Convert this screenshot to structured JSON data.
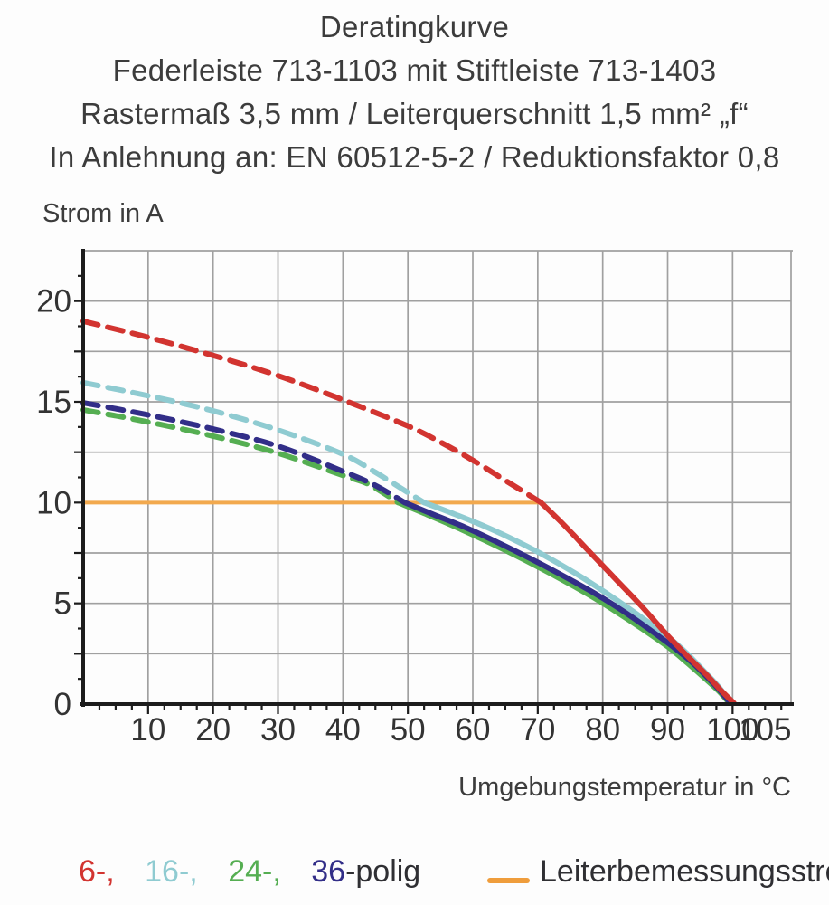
{
  "title": {
    "line1": "Deratingkurve",
    "line2": "Federleiste 713-1103 mit Stiftleiste 713-1403",
    "line3": "Rastermaß 3,5 mm / Leiterquerschnitt 1,5 mm² „f“",
    "line4": "In Anlehnung an: EN 60512-5-2 / Reduktionsfaktor 0,8"
  },
  "chart_data": {
    "type": "line",
    "title": "Deratingkurve",
    "xlabel": "Umgebungstemperatur in °C",
    "ylabel": "Strom in A",
    "xlim": [
      0,
      109
    ],
    "ylim": [
      0,
      22.5
    ],
    "x_ticks": [
      10,
      20,
      30,
      40,
      50,
      60,
      70,
      80,
      90,
      100,
      105
    ],
    "x_grid_step": 10,
    "x_minor_tick_step": 2.5,
    "y_ticks": [
      0,
      5,
      10,
      15,
      20
    ],
    "y_grid_step": 2.5,
    "y_minor_tick_step": 1.25,
    "grid": true,
    "grid_color": "#a0a0a0",
    "axis_color": "#1c1c1c",
    "legend_position": "bottom",
    "rated_line": {
      "label": "Leiterbemessungsstrom",
      "color": "#f2a94e",
      "current_a": 10,
      "x_start": 0,
      "x_end": 70.5
    },
    "series": [
      {
        "name": "24-polig",
        "color": "#55ae52",
        "dashed_above_rated_current": true,
        "points_dashed": [
          [
            0,
            14.6
          ],
          [
            10,
            14.0
          ],
          [
            20,
            13.3
          ],
          [
            30,
            12.45
          ],
          [
            40,
            11.35
          ],
          [
            44,
            10.9
          ],
          [
            48.5,
            10.0
          ]
        ],
        "points_solid": [
          [
            48.5,
            10.0
          ],
          [
            53,
            9.4
          ],
          [
            58,
            8.7
          ],
          [
            63,
            7.95
          ],
          [
            68,
            7.15
          ],
          [
            73,
            6.3
          ],
          [
            78,
            5.4
          ],
          [
            82,
            4.6
          ],
          [
            86,
            3.75
          ],
          [
            90,
            2.85
          ],
          [
            93,
            2.05
          ],
          [
            96,
            1.2
          ],
          [
            98,
            0.6
          ],
          [
            99.5,
            0.05
          ]
        ]
      },
      {
        "name": "16-polig",
        "color": "#8fcbd1",
        "dashed_above_rated_current": true,
        "points_dashed": [
          [
            0,
            15.95
          ],
          [
            10,
            15.3
          ],
          [
            20,
            14.55
          ],
          [
            30,
            13.6
          ],
          [
            40,
            12.4
          ],
          [
            45,
            11.5
          ],
          [
            50,
            10.5
          ],
          [
            52.5,
            10.0
          ]
        ],
        "points_solid": [
          [
            52.5,
            10.0
          ],
          [
            57,
            9.45
          ],
          [
            62,
            8.8
          ],
          [
            67,
            8.05
          ],
          [
            72,
            7.2
          ],
          [
            77,
            6.25
          ],
          [
            82,
            5.2
          ],
          [
            86,
            4.3
          ],
          [
            90,
            3.35
          ],
          [
            93,
            2.5
          ],
          [
            96,
            1.5
          ],
          [
            98,
            0.8
          ],
          [
            99.7,
            0.05
          ]
        ]
      },
      {
        "name": "36-polig",
        "color": "#322e88",
        "dashed_above_rated_current": true,
        "points_dashed": [
          [
            0,
            14.95
          ],
          [
            10,
            14.35
          ],
          [
            20,
            13.65
          ],
          [
            30,
            12.8
          ],
          [
            40,
            11.55
          ],
          [
            45,
            10.85
          ],
          [
            49.5,
            10.0
          ]
        ],
        "points_solid": [
          [
            49.5,
            10.0
          ],
          [
            54,
            9.4
          ],
          [
            59,
            8.75
          ],
          [
            64,
            8.0
          ],
          [
            69,
            7.2
          ],
          [
            74,
            6.35
          ],
          [
            79,
            5.45
          ],
          [
            83,
            4.65
          ],
          [
            87,
            3.75
          ],
          [
            91,
            2.8
          ],
          [
            94,
            2.0
          ],
          [
            96.5,
            1.2
          ],
          [
            98.5,
            0.5
          ],
          [
            99.6,
            0.05
          ]
        ]
      },
      {
        "name": "6-polig",
        "color": "#d23430",
        "dashed_above_rated_current": true,
        "points_dashed": [
          [
            0,
            19.0
          ],
          [
            10,
            18.2
          ],
          [
            20,
            17.3
          ],
          [
            30,
            16.3
          ],
          [
            40,
            15.1
          ],
          [
            50,
            13.8
          ],
          [
            55,
            13.0
          ],
          [
            60,
            12.1
          ],
          [
            65,
            11.1
          ],
          [
            70.5,
            10.0
          ]
        ],
        "points_solid": [
          [
            70.5,
            10.0
          ],
          [
            74,
            8.9
          ],
          [
            78,
            7.55
          ],
          [
            82,
            6.2
          ],
          [
            86,
            4.85
          ],
          [
            90,
            3.4
          ],
          [
            93,
            2.4
          ],
          [
            96,
            1.45
          ],
          [
            98,
            0.75
          ],
          [
            100.2,
            0.05
          ]
        ]
      }
    ]
  },
  "legend": {
    "items": [
      {
        "text": "6-,",
        "color": "#d23430"
      },
      {
        "text": "16-,",
        "color": "#8fcbd1"
      },
      {
        "text": "24-,",
        "color": "#55ae52"
      },
      {
        "text": "36",
        "color": "#322e88"
      }
    ],
    "suffix": "-polig",
    "rated": {
      "label": "Leiterbemessungsstrom",
      "color": "#ef9d3c"
    }
  }
}
